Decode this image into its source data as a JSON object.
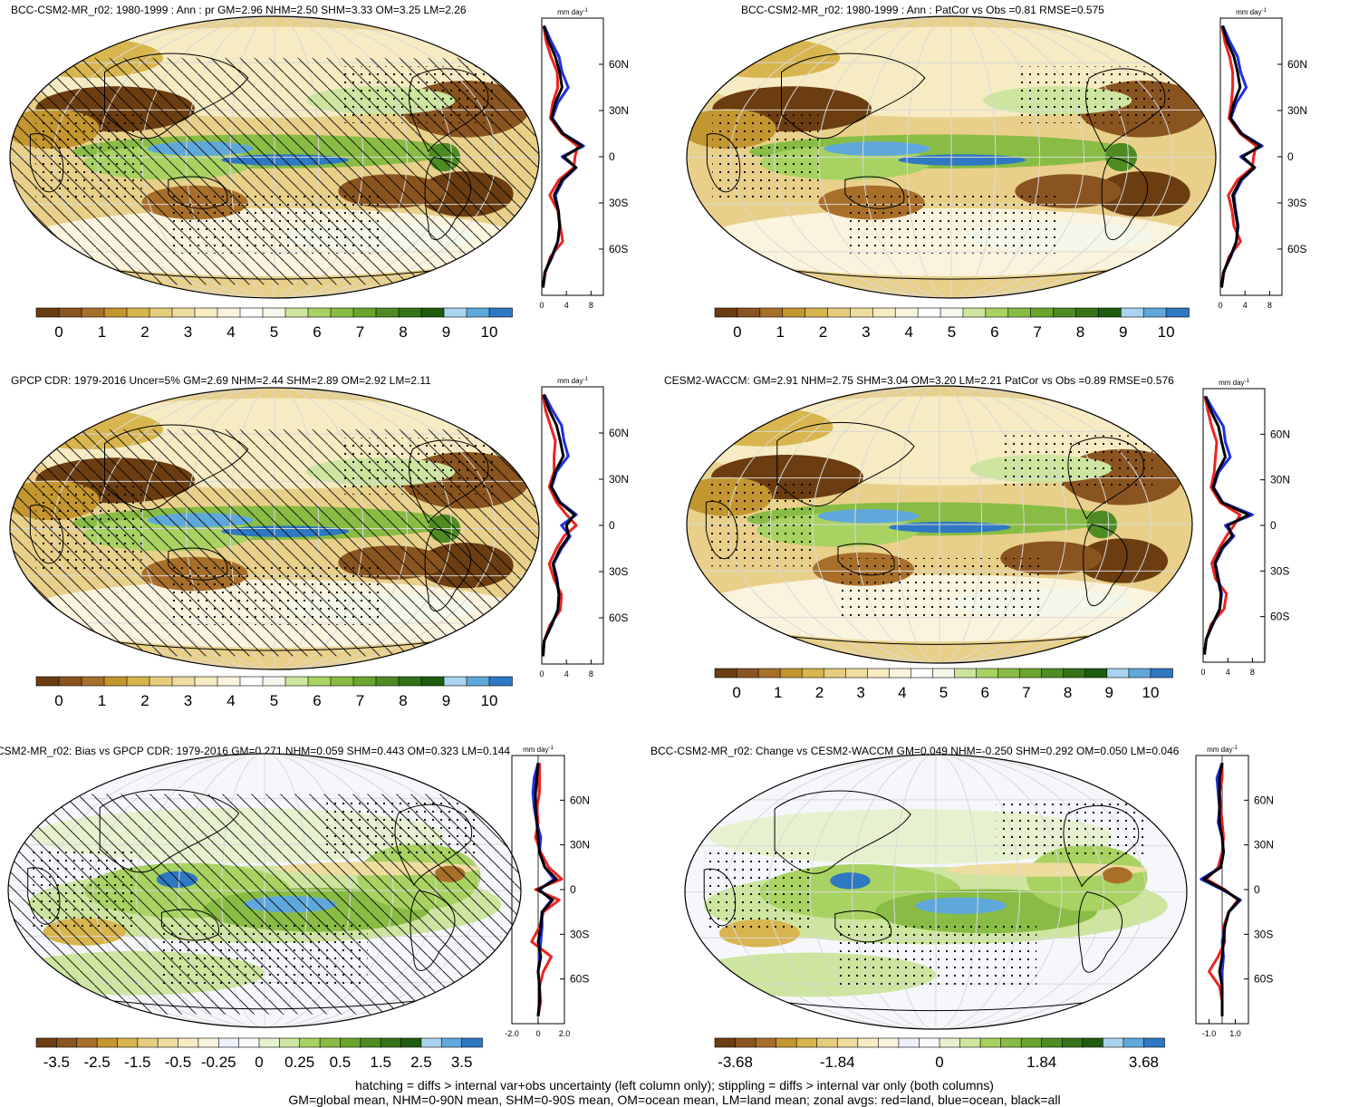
{
  "palettes": {
    "precip": [
      "#6b3d11",
      "#8a5420",
      "#a86f2b",
      "#c4962f",
      "#d8b54e",
      "#e6cd7d",
      "#efdd9f",
      "#f6ebc2",
      "#faf4df",
      "#ffffff",
      "#f4f8ea",
      "#cde59e",
      "#a8d262",
      "#89bc45",
      "#6aa52e",
      "#4e8c23",
      "#357319",
      "#1e5c10",
      "#a9d3ee",
      "#5fa8dc",
      "#2f78c2"
    ],
    "bias": [
      "#6b3d11",
      "#8a5420",
      "#a86f2b",
      "#c4962f",
      "#d8b54e",
      "#e6cd7d",
      "#efdd9f",
      "#f6ebc2",
      "#faf4df",
      "#eef0fa",
      "#f8f9fb",
      "#e6f2cf",
      "#cde59e",
      "#a8d262",
      "#89bc45",
      "#6aa52e",
      "#4e8c23",
      "#357319",
      "#1e5c10",
      "#a9d3ee",
      "#5fa8dc",
      "#2f78c2"
    ]
  },
  "chart_data": [
    {
      "type": "heatmap",
      "id": "model",
      "title": "BCC-CSM2-MR_r02: 1980-1999 : Ann : pr GM=2.96 NHM=2.50 SHM=3.33 OM=3.25 LM=2.26",
      "colorbar": {
        "palette": "precip",
        "labels": [
          "0",
          "1",
          "2",
          "3",
          "4",
          "5",
          "6",
          "7",
          "8",
          "9",
          "10"
        ]
      },
      "zonal": {
        "unit": "mm day",
        "x_ticks": [
          "0",
          "4",
          "8"
        ],
        "xlim": [
          0,
          10
        ],
        "y_ticks": [
          "60N",
          "30N",
          "0",
          "30S",
          "60S"
        ],
        "lat": [
          85,
          75,
          65,
          55,
          45,
          35,
          25,
          15,
          7,
          0,
          -7,
          -15,
          -25,
          -35,
          -45,
          -55,
          -65,
          -75,
          -85
        ],
        "series": [
          {
            "color": "red",
            "values": [
              0.3,
              0.7,
              1.5,
              2.5,
              2.6,
              1.8,
              1.4,
              3.2,
              5.8,
              5.4,
              5.2,
              2.8,
              1.3,
              2.6,
              3.0,
              3.4,
              1.4,
              0.6,
              0.2
            ]
          },
          {
            "color": "blue",
            "values": [
              0.4,
              1.5,
              2.8,
              3.3,
              4.3,
              2.6,
              1.7,
              3.5,
              6.8,
              3.3,
              5.6,
              3.5,
              2.2,
              2.7,
              2.9,
              2.6,
              1.7,
              0.5,
              0.2
            ]
          },
          {
            "color": "black",
            "values": [
              0.35,
              1.1,
              2.2,
              2.9,
              3.3,
              2.2,
              1.6,
              3.4,
              6.5,
              3.6,
              5.5,
              3.3,
              2.0,
              2.7,
              2.9,
              2.6,
              1.6,
              0.5,
              0.2
            ]
          }
        ]
      }
    },
    {
      "type": "heatmap",
      "id": "model-stipple",
      "title": "BCC-CSM2-MR_r02: 1980-1999 : Ann : PatCor vs Obs =0.81 RMSE=0.575",
      "colorbar": {
        "palette": "precip",
        "labels": [
          "0",
          "1",
          "2",
          "3",
          "4",
          "5",
          "6",
          "7",
          "8",
          "9",
          "10"
        ]
      },
      "zonal": {
        "unit": "mm day",
        "x_ticks": [
          "0",
          "4",
          "8"
        ],
        "xlim": [
          0,
          10
        ],
        "y_ticks": [
          "60N",
          "30N",
          "0",
          "30S",
          "60S"
        ],
        "lat": [
          85,
          75,
          65,
          55,
          45,
          35,
          25,
          15,
          7,
          0,
          -7,
          -15,
          -25,
          -35,
          -45,
          -55,
          -65,
          -75,
          -85
        ],
        "series": [
          {
            "color": "red",
            "values": [
              0.3,
              0.7,
              1.5,
              2.0,
              2.0,
              1.8,
              1.4,
              3.2,
              5.8,
              5.4,
              5.2,
              2.8,
              1.3,
              1.9,
              2.2,
              3.3,
              1.4,
              0.6,
              0.2
            ]
          },
          {
            "color": "blue",
            "values": [
              0.4,
              1.5,
              2.8,
              3.3,
              4.2,
              2.6,
              1.7,
              3.5,
              6.8,
              3.3,
              5.6,
              3.5,
              2.2,
              2.5,
              2.9,
              2.6,
              1.7,
              0.5,
              0.2
            ]
          },
          {
            "color": "black",
            "values": [
              0.35,
              1.1,
              2.2,
              2.8,
              3.2,
              2.2,
              1.6,
              3.4,
              6.5,
              3.6,
              5.5,
              3.3,
              2.0,
              2.4,
              2.8,
              2.6,
              1.6,
              0.5,
              0.2
            ]
          }
        ]
      }
    },
    {
      "type": "heatmap",
      "id": "obs",
      "title": "GPCP CDR: 1979-2016 Uncer=5% GM=2.69 NHM=2.44 SHM=2.89 OM=2.92 LM=2.11",
      "colorbar": {
        "palette": "precip",
        "labels": [
          "0",
          "1",
          "2",
          "3",
          "4",
          "5",
          "6",
          "7",
          "8",
          "9",
          "10"
        ]
      },
      "zonal": {
        "unit": "mm day",
        "x_ticks": [
          "0",
          "4",
          "8"
        ],
        "xlim": [
          0,
          10
        ],
        "y_ticks": [
          "60N",
          "30N",
          "0",
          "30S",
          "60S"
        ],
        "lat": [
          85,
          75,
          65,
          55,
          45,
          35,
          25,
          15,
          7,
          0,
          -7,
          -15,
          -25,
          -35,
          -45,
          -55,
          -65,
          -75,
          -85
        ],
        "series": [
          {
            "color": "red",
            "values": [
              0.2,
              0.6,
              1.4,
              2.2,
              2.0,
              2.0,
              1.2,
              2.4,
              4.0,
              5.6,
              3.6,
              2.4,
              1.2,
              2.0,
              3.2,
              3.0,
              1.3,
              0.4,
              0.2
            ]
          },
          {
            "color": "blue",
            "values": [
              0.4,
              1.7,
              3.2,
              3.6,
              4.3,
              2.4,
              1.6,
              3.0,
              5.6,
              3.2,
              4.6,
              3.2,
              1.9,
              2.5,
              2.8,
              2.6,
              1.6,
              0.4,
              0.2
            ]
          },
          {
            "color": "black",
            "values": [
              0.3,
              1.2,
              2.4,
              3.0,
              3.5,
              2.2,
              1.5,
              2.9,
              5.3,
              4.0,
              4.4,
              3.0,
              1.8,
              2.4,
              2.8,
              2.6,
              1.5,
              0.4,
              0.2
            ]
          }
        ]
      }
    },
    {
      "type": "heatmap",
      "id": "ref-model",
      "title": "CESM2-WACCM: GM=2.91 NHM=2.75 SHM=3.04 OM=3.20 LM=2.21 PatCor vs Obs =0.89 RMSE=0.576",
      "colorbar": {
        "palette": "precip",
        "labels": [
          "0",
          "1",
          "2",
          "3",
          "4",
          "5",
          "6",
          "7",
          "8",
          "9",
          "10"
        ]
      },
      "zonal": {
        "unit": "mm day",
        "x_ticks": [
          "0",
          "4",
          "8"
        ],
        "xlim": [
          0,
          10
        ],
        "y_ticks": [
          "60N",
          "30N",
          "0",
          "30S",
          "60S"
        ],
        "lat": [
          85,
          75,
          65,
          55,
          45,
          35,
          25,
          15,
          7,
          0,
          -7,
          -15,
          -25,
          -35,
          -45,
          -55,
          -65,
          -75,
          -85
        ],
        "series": [
          {
            "color": "red",
            "values": [
              0.3,
              0.8,
              1.4,
              2.2,
              2.0,
              1.8,
              1.3,
              2.8,
              6.0,
              5.0,
              3.8,
              2.6,
              1.4,
              2.0,
              3.8,
              3.4,
              1.3,
              0.5,
              0.2
            ]
          },
          {
            "color": "blue",
            "values": [
              0.4,
              1.8,
              3.3,
              3.6,
              4.4,
              2.5,
              1.7,
              3.2,
              8.0,
              3.6,
              5.0,
              3.2,
              2.0,
              2.5,
              3.0,
              2.7,
              1.6,
              0.5,
              0.2
            ]
          },
          {
            "color": "black",
            "values": [
              0.35,
              1.3,
              2.5,
              3.0,
              3.6,
              2.3,
              1.6,
              3.1,
              7.4,
              4.0,
              4.7,
              3.0,
              1.9,
              2.4,
              2.9,
              2.7,
              1.5,
              0.5,
              0.2
            ]
          }
        ]
      }
    },
    {
      "type": "heatmap",
      "id": "bias",
      "title": "CSM2-MR_r02: Bias vs GPCP CDR: 1979-2016 GM=0.271 NHM=0.059 SHM=0.443 OM=0.323 LM=0.144",
      "colorbar": {
        "palette": "bias",
        "labels": [
          "-3.5",
          "-2.5",
          "-1.5",
          "-0.5",
          "-0.25",
          "0",
          "0.25",
          "0.5",
          "1.5",
          "2.5",
          "3.5"
        ]
      },
      "zonal": {
        "unit": "mm day",
        "x_ticks": [
          "-2.0",
          "0",
          "2.0"
        ],
        "xlim": [
          -2.0,
          2.0
        ],
        "y_ticks": [
          "60N",
          "30N",
          "0",
          "30S",
          "60S"
        ],
        "lat": [
          85,
          75,
          65,
          55,
          45,
          35,
          25,
          15,
          7,
          0,
          -7,
          -15,
          -25,
          -35,
          -45,
          -55,
          -65,
          -75,
          -85
        ],
        "series": [
          {
            "color": "red",
            "values": [
              0.1,
              0.1,
              0.1,
              -0.1,
              0.0,
              -0.2,
              0.2,
              0.8,
              1.8,
              -0.2,
              1.6,
              0.4,
              0.1,
              -0.5,
              1.0,
              0.4,
              0.1,
              0.2,
              0.0
            ]
          },
          {
            "color": "blue",
            "values": [
              0.0,
              -0.3,
              -0.4,
              -0.3,
              -0.1,
              0.2,
              0.1,
              0.5,
              1.2,
              0.1,
              1.0,
              0.3,
              0.3,
              0.2,
              0.1,
              0.0,
              0.1,
              0.1,
              0.0
            ]
          },
          {
            "color": "black",
            "values": [
              0.0,
              -0.1,
              -0.2,
              -0.2,
              -0.1,
              0.0,
              0.1,
              0.5,
              1.4,
              0.0,
              1.1,
              0.3,
              0.2,
              0.0,
              0.2,
              0.0,
              0.1,
              0.1,
              0.0
            ]
          }
        ]
      }
    },
    {
      "type": "heatmap",
      "id": "change",
      "title": "BCC-CSM2-MR_r02: Change vs CESM2-WACCM GM=0.049 NHM=-0.250 SHM=0.292 OM=0.050 LM=0.046",
      "colorbar": {
        "palette": "bias",
        "labels": [
          "-3.68",
          "-1.84",
          "0",
          "1.84",
          "3.68"
        ]
      },
      "zonal": {
        "unit": "mm day",
        "x_ticks": [
          "-1.0",
          "1.0"
        ],
        "xlim": [
          -2.0,
          2.0
        ],
        "y_ticks": [
          "60N",
          "30N",
          "0",
          "30S",
          "60S"
        ],
        "lat": [
          85,
          75,
          65,
          55,
          45,
          35,
          25,
          15,
          7,
          0,
          -7,
          -15,
          -25,
          -35,
          -45,
          -55,
          -65,
          -75,
          -85
        ],
        "series": [
          {
            "color": "red",
            "values": [
              0.0,
              0.0,
              -0.2,
              -0.1,
              0.0,
              0.1,
              0.0,
              -0.3,
              -1.2,
              0.2,
              1.2,
              0.5,
              0.1,
              0.2,
              -0.3,
              -1.0,
              -0.2,
              0.0,
              0.0
            ]
          },
          {
            "color": "blue",
            "values": [
              0.0,
              -0.4,
              -0.3,
              -0.2,
              -0.3,
              0.0,
              0.1,
              -0.1,
              -1.6,
              0.0,
              1.4,
              0.5,
              0.2,
              0.0,
              0.1,
              0.0,
              0.0,
              0.0,
              0.0
            ]
          },
          {
            "color": "black",
            "values": [
              0.0,
              -0.2,
              -0.2,
              -0.2,
              -0.2,
              0.0,
              0.1,
              -0.1,
              -1.4,
              0.1,
              1.3,
              0.5,
              0.2,
              0.1,
              0.0,
              -0.2,
              0.0,
              0.0,
              0.0
            ]
          }
        ]
      }
    }
  ],
  "footer": {
    "line1": "hatching = diffs > internal var+obs uncertainty (left column only); stippling = diffs > internal var only (both columns)",
    "line2": "GM=global mean, NHM=0-90N mean, SHM=0-90S mean, OM=ocean mean, LM=land mean; zonal avgs: red=land, blue=ocean, black=all"
  }
}
